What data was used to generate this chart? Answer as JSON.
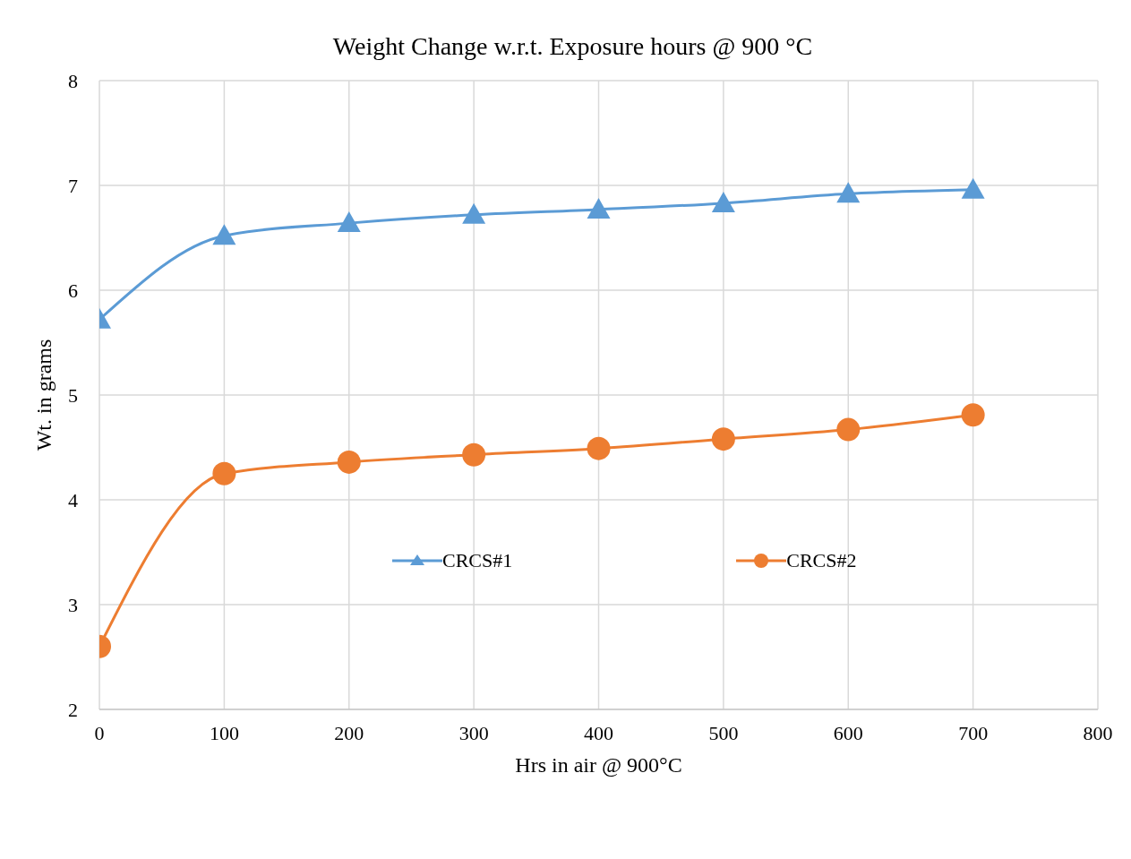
{
  "chart_data": {
    "type": "line",
    "title": "Weight Change w.r.t. Exposure hours @ 900 °C",
    "xlabel": "Hrs in air @ 900°C",
    "ylabel": "Wt. in  grams",
    "x": [
      0,
      100,
      200,
      300,
      400,
      500,
      600,
      700
    ],
    "series": [
      {
        "name": "CRCS#1",
        "color": "#5b9bd5",
        "marker": "triangle",
        "values": [
          5.72,
          6.52,
          6.64,
          6.72,
          6.77,
          6.83,
          6.92,
          6.96
        ]
      },
      {
        "name": "CRCS#2",
        "color": "#ed7d31",
        "marker": "circle",
        "values": [
          2.6,
          4.25,
          4.36,
          4.43,
          4.49,
          4.58,
          4.67,
          4.81
        ]
      }
    ],
    "xlim": [
      0,
      800
    ],
    "xticks": [
      0,
      100,
      200,
      300,
      400,
      500,
      600,
      700,
      800
    ],
    "ylim": [
      2,
      8
    ],
    "yticks": [
      2,
      3,
      4,
      5,
      6,
      7,
      8
    ],
    "grid": true,
    "legend": "center"
  }
}
